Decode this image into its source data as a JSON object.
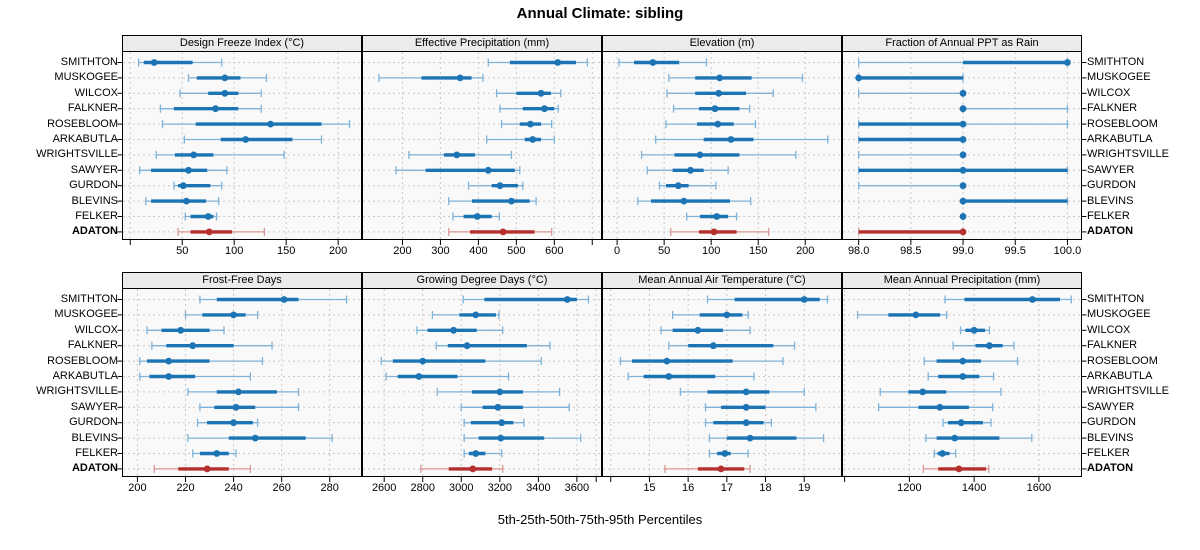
{
  "title": "Annual Climate: sibling",
  "caption": "5th-25th-50th-75th-95th Percentiles",
  "sites": [
    "SMITHTON",
    "MUSKOGEE",
    "WILCOX",
    "FALKNER",
    "ROSEBLOOM",
    "ARKABUTLA",
    "WRIGHTSVILLE",
    "SAWYER",
    "GURDON",
    "BLEVINS",
    "FELKER",
    "ADATON"
  ],
  "highlight_site": "ADATON",
  "colors": {
    "series_blue": "#1c74b4",
    "series_blue_light": "#7fb2d8",
    "series_red": "#b5302d",
    "series_red_light": "#d99694",
    "strip_bg": "#ebebeb",
    "panel_bg": "#f9f9f9",
    "grid": "#c9c9c9",
    "border": "#000000"
  },
  "chart_data": {
    "type": "interval-dot-trellis",
    "percentiles": [
      5,
      25,
      50,
      75,
      95
    ],
    "legend_note": "line = 5th-95th, thick bar = 25th-75th, dot = 50th percentile",
    "grid": "dashed",
    "panels": [
      {
        "title": "Design Freeze Index (°C)",
        "xlim": [
          -7,
          222
        ],
        "ticks": [
          0,
          50,
          100,
          150,
          200
        ],
        "tick_labels": [
          "",
          "50",
          "100",
          "150",
          "200"
        ],
        "values": [
          [
            8,
            13,
            23,
            60,
            88
          ],
          [
            56,
            64,
            91,
            106,
            131
          ],
          [
            48,
            75,
            91,
            104,
            126
          ],
          [
            29,
            42,
            82,
            104,
            126
          ],
          [
            31,
            63,
            135,
            184,
            211
          ],
          [
            52,
            87,
            111,
            156,
            184
          ],
          [
            25,
            43,
            61,
            80,
            148
          ],
          [
            9,
            20,
            56,
            74,
            93
          ],
          [
            42,
            46,
            51,
            77,
            88
          ],
          [
            15,
            20,
            54,
            73,
            85
          ],
          [
            53,
            58,
            75,
            80,
            83
          ],
          [
            46,
            58,
            76,
            98,
            129
          ]
        ]
      },
      {
        "title": "Effective Precipitation (mm)",
        "xlim": [
          96,
          723
        ],
        "ticks": [
          200,
          300,
          400,
          500,
          600,
          700
        ],
        "tick_labels": [
          "200",
          "300",
          "400",
          "500",
          "600",
          ""
        ],
        "values": [
          [
            426,
            483,
            609,
            657,
            687
          ],
          [
            138,
            250,
            352,
            382,
            412
          ],
          [
            448,
            500,
            565,
            591,
            617
          ],
          [
            457,
            517,
            574,
            600,
            610
          ],
          [
            461,
            509,
            537,
            565,
            593
          ],
          [
            422,
            522,
            543,
            565,
            600
          ],
          [
            217,
            309,
            343,
            391,
            487
          ],
          [
            183,
            261,
            426,
            496,
            509
          ],
          [
            374,
            435,
            457,
            504,
            517
          ],
          [
            322,
            383,
            487,
            535,
            552
          ],
          [
            333,
            361,
            397,
            435,
            455
          ],
          [
            322,
            378,
            465,
            548,
            593
          ]
        ]
      },
      {
        "title": "Elevation (m)",
        "xlim": [
          -15,
          238
        ],
        "ticks": [
          0,
          50,
          100,
          150,
          200
        ],
        "tick_labels": [
          "0",
          "50",
          "100",
          "150",
          "200"
        ],
        "values": [
          [
            2,
            18,
            38,
            66,
            95
          ],
          [
            55,
            83,
            109,
            143,
            197
          ],
          [
            53,
            83,
            108,
            137,
            166
          ],
          [
            60,
            87,
            104,
            130,
            141
          ],
          [
            52,
            85,
            107,
            124,
            147
          ],
          [
            41,
            92,
            121,
            145,
            224
          ],
          [
            26,
            61,
            88,
            130,
            190
          ],
          [
            32,
            59,
            78,
            92,
            118
          ],
          [
            45,
            52,
            65,
            76,
            105
          ],
          [
            22,
            36,
            71,
            120,
            142
          ],
          [
            74,
            88,
            106,
            118,
            127
          ],
          [
            57,
            87,
            103,
            127,
            161
          ]
        ]
      },
      {
        "title": "Fraction of Annual PPT as Rain",
        "xlim": [
          97.85,
          100.13
        ],
        "ticks": [
          98.0,
          98.5,
          99.0,
          99.5,
          100.0
        ],
        "tick_labels": [
          "98.0",
          "98.5",
          "99.0",
          "99.5",
          "100.0"
        ],
        "values": [
          [
            98,
            99,
            100,
            100,
            100
          ],
          [
            98,
            98,
            98,
            99,
            99
          ],
          [
            98,
            99,
            99,
            99,
            99
          ],
          [
            99,
            99,
            99,
            99,
            100
          ],
          [
            98,
            98,
            99,
            99,
            100
          ],
          [
            98,
            98,
            99,
            99,
            99
          ],
          [
            98,
            99,
            99,
            99,
            99
          ],
          [
            98,
            98,
            99,
            100,
            100
          ],
          [
            98,
            99,
            99,
            99,
            99
          ],
          [
            99,
            99,
            99,
            100,
            100
          ],
          [
            99,
            99,
            99,
            99,
            99
          ],
          [
            98,
            98,
            99,
            99,
            99
          ]
        ]
      },
      {
        "title": "Frost-Free Days",
        "xlim": [
          194,
          293
        ],
        "ticks": [
          200,
          220,
          240,
          260,
          280
        ],
        "tick_labels": [
          "200",
          "220",
          "240",
          "260",
          "280"
        ],
        "values": [
          [
            226,
            233,
            261,
            267,
            287
          ],
          [
            220,
            227,
            240,
            245,
            250
          ],
          [
            204,
            210,
            218,
            230,
            236
          ],
          [
            206,
            212,
            223,
            240,
            256
          ],
          [
            201,
            204,
            213,
            230,
            252
          ],
          [
            201,
            205,
            213,
            224,
            247
          ],
          [
            221,
            233,
            242,
            258,
            267
          ],
          [
            226,
            232,
            241,
            249,
            267
          ],
          [
            225,
            229,
            240,
            248,
            250
          ],
          [
            221,
            238,
            249,
            270,
            281
          ],
          [
            223,
            226,
            233,
            238,
            241
          ],
          [
            207,
            217,
            229,
            238,
            247
          ]
        ]
      },
      {
        "title": "Growing Degree Days (°C)",
        "xlim": [
          2490,
          3725
        ],
        "ticks": [
          2600,
          2800,
          3000,
          3200,
          3400,
          3600,
          3700
        ],
        "tick_labels": [
          "2600",
          "2800",
          "3000",
          "3200",
          "3400",
          "3600",
          ""
        ],
        "values": [
          [
            3010,
            3120,
            3550,
            3600,
            3660
          ],
          [
            2850,
            2990,
            3075,
            3180,
            3195
          ],
          [
            2770,
            2825,
            2960,
            3080,
            3215
          ],
          [
            2870,
            2930,
            3030,
            3340,
            3460
          ],
          [
            2585,
            2645,
            2800,
            3125,
            3415
          ],
          [
            2610,
            2670,
            2780,
            2980,
            3245
          ],
          [
            2875,
            3055,
            3200,
            3320,
            3510
          ],
          [
            3000,
            3110,
            3190,
            3320,
            3560
          ],
          [
            3015,
            3050,
            3210,
            3270,
            3325
          ],
          [
            3015,
            3090,
            3205,
            3430,
            3620
          ],
          [
            3015,
            3040,
            3075,
            3125,
            3210
          ],
          [
            2790,
            2935,
            3060,
            3160,
            3215
          ]
        ]
      },
      {
        "title": "Mean Annual Air Temperature (°C)",
        "xlim": [
          13.8,
          19.95
        ],
        "ticks": [
          14,
          15,
          16,
          17,
          18,
          19
        ],
        "tick_labels": [
          "",
          "15",
          "16",
          "17",
          "18",
          "19"
        ],
        "values": [
          [
            16.5,
            17.2,
            19.0,
            19.4,
            19.6
          ],
          [
            15.6,
            16.3,
            17.0,
            17.4,
            17.55
          ],
          [
            15.3,
            15.6,
            16.25,
            16.9,
            17.6
          ],
          [
            15.5,
            16.0,
            16.65,
            18.2,
            18.75
          ],
          [
            14.25,
            14.55,
            15.45,
            17.15,
            18.45
          ],
          [
            14.45,
            14.85,
            15.5,
            16.7,
            17.7
          ],
          [
            15.8,
            16.5,
            17.5,
            18.1,
            19.0
          ],
          [
            16.45,
            16.85,
            17.5,
            18.0,
            19.3
          ],
          [
            16.45,
            16.65,
            17.5,
            17.95,
            18.15
          ],
          [
            16.55,
            17.0,
            17.6,
            18.8,
            19.5
          ],
          [
            16.55,
            16.75,
            16.95,
            17.1,
            17.55
          ],
          [
            15.4,
            16.25,
            16.85,
            17.45,
            17.6
          ]
        ]
      },
      {
        "title": "Mean Annual Precipitation (mm)",
        "xlim": [
          995,
          1730
        ],
        "ticks": [
          1000,
          1200,
          1400,
          1600
        ],
        "tick_labels": [
          "",
          "1200",
          "1400",
          "1600"
        ],
        "values": [
          [
            1310,
            1370,
            1580,
            1665,
            1700
          ],
          [
            1040,
            1135,
            1220,
            1295,
            1315
          ],
          [
            1358,
            1373,
            1400,
            1434,
            1447
          ],
          [
            1335,
            1404,
            1447,
            1488,
            1523
          ],
          [
            1246,
            1284,
            1365,
            1421,
            1534
          ],
          [
            1258,
            1289,
            1365,
            1416,
            1460
          ],
          [
            1110,
            1197,
            1241,
            1314,
            1483
          ],
          [
            1105,
            1228,
            1294,
            1384,
            1457
          ],
          [
            1304,
            1319,
            1360,
            1427,
            1452
          ],
          [
            1251,
            1284,
            1340,
            1478,
            1578
          ],
          [
            1277,
            1287,
            1302,
            1324,
            1343
          ],
          [
            1243,
            1289,
            1353,
            1437,
            1445
          ]
        ]
      }
    ]
  }
}
